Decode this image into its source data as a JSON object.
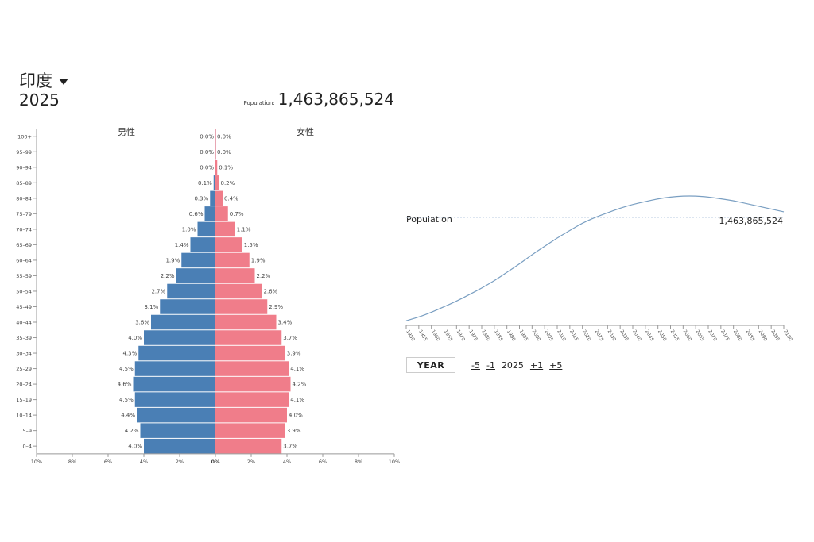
{
  "header": {
    "country": "印度",
    "year": "2025",
    "population_label": "Population:",
    "population_value": "1,463,865,524"
  },
  "controls": {
    "year_label": "YEAR",
    "minus5": "-5",
    "minus1": "-1",
    "current_year": "2025",
    "plus1": "+1",
    "plus5": "+5"
  },
  "colors": {
    "male": "#4a7fb5",
    "female": "#f07d8a",
    "line": "#7a9fc2",
    "guide": "#b8cbe0"
  },
  "chart_data": [
    {
      "type": "bar",
      "subtype": "population-pyramid",
      "series": [
        {
          "name": "男性",
          "values": [
            4.0,
            4.2,
            4.4,
            4.5,
            4.6,
            4.5,
            4.3,
            4.0,
            3.6,
            3.1,
            2.7,
            2.2,
            1.9,
            1.4,
            1.0,
            0.6,
            0.3,
            0.1,
            0.0,
            0.0,
            0.0
          ]
        },
        {
          "name": "女性",
          "values": [
            3.7,
            3.9,
            4.0,
            4.1,
            4.2,
            4.1,
            3.9,
            3.7,
            3.4,
            2.9,
            2.6,
            2.2,
            1.9,
            1.5,
            1.1,
            0.7,
            0.4,
            0.2,
            0.1,
            0.0,
            0.0
          ]
        }
      ],
      "categories": [
        "0–4",
        "5–9",
        "10–14",
        "15–19",
        "20–24",
        "25–29",
        "30–34",
        "35–39",
        "40–44",
        "45–49",
        "50–54",
        "55–59",
        "60–64",
        "65–69",
        "70–74",
        "75–79",
        "80–84",
        "85–89",
        "90–94",
        "95–99",
        "100+"
      ],
      "xlim": [
        -10,
        10
      ],
      "x_ticks": [
        "10%",
        "8%",
        "6%",
        "4%",
        "2%",
        "0%",
        "2%",
        "4%",
        "6%",
        "8%",
        "10%"
      ]
    },
    {
      "type": "line",
      "title": "Population",
      "x": [
        1950,
        1955,
        1960,
        1965,
        1970,
        1975,
        1980,
        1985,
        1990,
        1995,
        2000,
        2005,
        2010,
        2015,
        2020,
        2025,
        2030,
        2035,
        2040,
        2045,
        2050,
        2055,
        2060,
        2065,
        2070,
        2075,
        2080,
        2085,
        2090,
        2095,
        2100
      ],
      "y": [
        0.35,
        0.39,
        0.44,
        0.5,
        0.56,
        0.63,
        0.7,
        0.78,
        0.87,
        0.96,
        1.06,
        1.15,
        1.24,
        1.32,
        1.4,
        1.46,
        1.51,
        1.56,
        1.6,
        1.63,
        1.66,
        1.68,
        1.69,
        1.69,
        1.68,
        1.66,
        1.64,
        1.61,
        1.58,
        1.55,
        1.52
      ],
      "xlim": [
        1950,
        2100
      ],
      "ylim": [
        0.3,
        1.75
      ],
      "highlight": {
        "x": 2025,
        "label": "1,463,865,524"
      }
    }
  ]
}
